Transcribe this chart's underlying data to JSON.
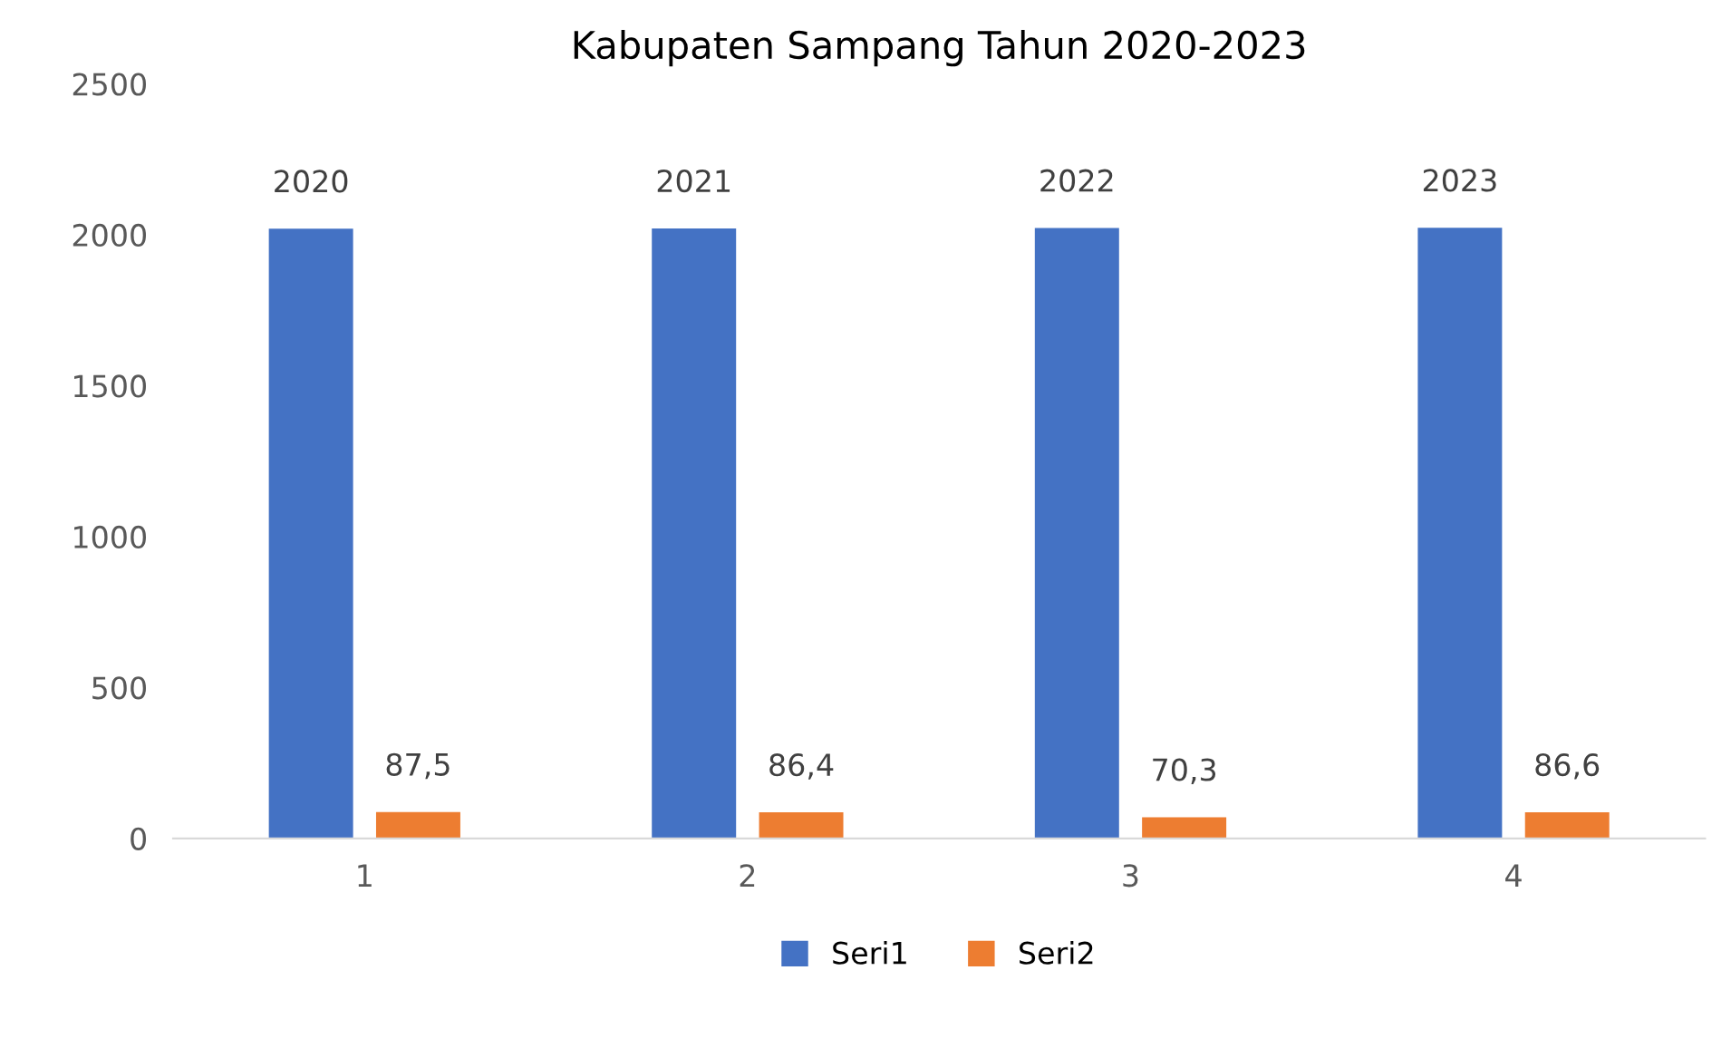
{
  "chart_data": {
    "type": "bar",
    "title": "Kabupaten Sampang Tahun 2020-2023",
    "categories": [
      "1",
      "2",
      "3",
      "4"
    ],
    "series": [
      {
        "name": "Seri1",
        "color": "#4472c4",
        "values": [
          2020,
          2021,
          2022,
          2023
        ],
        "value_labels": [
          "2020",
          "2021",
          "2022",
          "2023"
        ]
      },
      {
        "name": "Seri2",
        "color": "#ed7d31",
        "values": [
          87.5,
          86.4,
          70.3,
          86.6
        ],
        "value_labels": [
          "87,5",
          "86,4",
          "70,3",
          "86,6"
        ]
      }
    ],
    "ylim": [
      0,
      2500
    ],
    "yticks": [
      0,
      500,
      1000,
      1500,
      2000,
      2500
    ],
    "grid": false,
    "legend": "bottom"
  }
}
